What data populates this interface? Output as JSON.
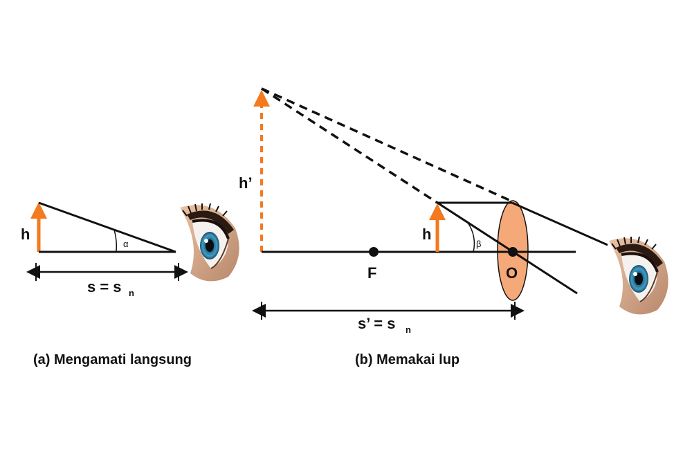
{
  "colors": {
    "orange": "#f47a20",
    "lens_fill": "#f5a878",
    "line": "#111111"
  },
  "panel_a": {
    "h_label": "h",
    "angle_label": "α",
    "dist_main": "s = s",
    "dist_sub": "n",
    "caption": "(a) Mengamati langsung",
    "eye_icon": "eye-icon"
  },
  "panel_b": {
    "image_height_label": "h’",
    "h_label": "h",
    "angle_label": "β",
    "focus_label": "F",
    "lens_center_label": "O",
    "dist_main": "s’ = s",
    "dist_sub": "n",
    "caption": "(b) Memakai lup",
    "eye_icon": "eye-icon"
  }
}
